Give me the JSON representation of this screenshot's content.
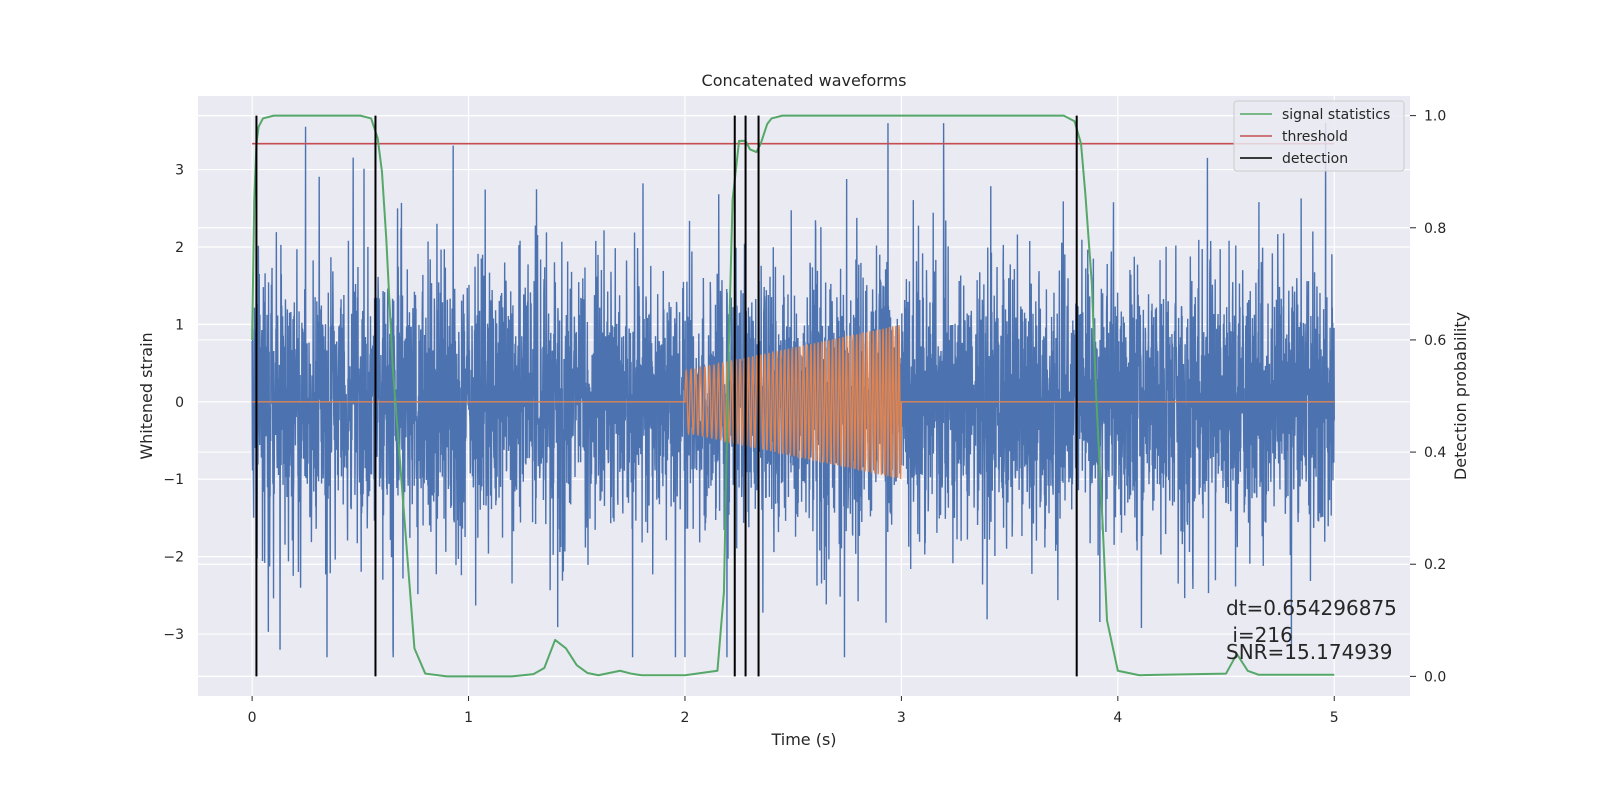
{
  "chart_data": {
    "type": "line",
    "title": "Concatenated waveforms",
    "xlabel": "Time (s)",
    "ylabel": "Whitened strain",
    "ylabel_right": "Detection probability",
    "xlim": [
      -0.25,
      5.35
    ],
    "ylim": [
      -3.8,
      3.95
    ],
    "ylim_right": [
      -0.035,
      1.035
    ],
    "xticks": [
      0,
      1,
      2,
      3,
      4,
      5
    ],
    "yticks": [
      -3,
      -2,
      -1,
      0,
      1,
      2,
      3
    ],
    "yticks_right": [
      0.0,
      0.2,
      0.4,
      0.6,
      0.8,
      1.0
    ],
    "xtick_labels": [
      "0",
      "1",
      "2",
      "3",
      "4",
      "5"
    ],
    "ytick_labels": [
      "−3",
      "−2",
      "−1",
      "0",
      "1",
      "2",
      "3"
    ],
    "ytick_labels_right": [
      "0.0",
      "0.2",
      "0.4",
      "0.6",
      "0.8",
      "1.0"
    ],
    "grid": true,
    "legend_position": "top-right",
    "colors": {
      "strain": "#4c72b0",
      "injection": "#dd8452",
      "signal_statistics": "#55a868",
      "threshold": "#c44e52",
      "detection": "#000000",
      "plot_bg": "#eaeaf2",
      "grid": "#ffffff"
    },
    "series": [
      {
        "name": "",
        "axis": "left",
        "kind": "noise",
        "x_range": [
          0,
          5
        ],
        "y_range_approx": [
          -3.3,
          3.6
        ]
      },
      {
        "name": "",
        "axis": "left",
        "kind": "chirp",
        "x_start": 2.0,
        "x_end": 3.0,
        "amplitude_start": 0.4,
        "amplitude_end": 1.0
      },
      {
        "name": "signal statistics",
        "axis": "right",
        "x": [
          0,
          0.01,
          0.02,
          0.03,
          0.05,
          0.1,
          0.5,
          0.55,
          0.58,
          0.6,
          0.62,
          0.65,
          0.7,
          0.75,
          0.8,
          0.9,
          1.2,
          1.3,
          1.35,
          1.4,
          1.45,
          1.5,
          1.55,
          1.6,
          1.7,
          1.75,
          1.8,
          2.0,
          2.15,
          2.18,
          2.2,
          2.22,
          2.25,
          2.28,
          2.3,
          2.33,
          2.35,
          2.38,
          2.4,
          2.45,
          3.75,
          3.8,
          3.83,
          3.85,
          3.88,
          3.9,
          3.93,
          3.95,
          4.0,
          4.1,
          4.2,
          4.5,
          4.55,
          4.6,
          4.65,
          5.0
        ],
        "y": [
          0.6,
          0.85,
          0.95,
          0.98,
          0.995,
          1.0,
          1.0,
          0.995,
          0.96,
          0.9,
          0.78,
          0.55,
          0.3,
          0.05,
          0.005,
          0.0,
          0.0,
          0.004,
          0.015,
          0.065,
          0.05,
          0.02,
          0.006,
          0.002,
          0.01,
          0.005,
          0.002,
          0.002,
          0.01,
          0.15,
          0.55,
          0.85,
          0.955,
          0.955,
          0.94,
          0.935,
          0.95,
          0.985,
          0.995,
          1.0,
          1.0,
          0.99,
          0.95,
          0.86,
          0.7,
          0.5,
          0.27,
          0.1,
          0.01,
          0.002,
          0.003,
          0.005,
          0.04,
          0.01,
          0.003,
          0.003
        ]
      },
      {
        "name": "threshold",
        "axis": "right",
        "x": [
          0,
          5
        ],
        "y": [
          0.95,
          0.95
        ]
      },
      {
        "name": "detection",
        "axis": "right",
        "kind": "vlines",
        "x": [
          0.02,
          0.57,
          2.23,
          2.28,
          2.34,
          3.81
        ],
        "ymin": 0.0,
        "ymax": 1.0
      }
    ],
    "legend": [
      "signal statistics",
      "threshold",
      "detection"
    ],
    "annotations": [
      "dt=0.654296875",
      " i=216",
      "SNR=15.174939"
    ]
  }
}
